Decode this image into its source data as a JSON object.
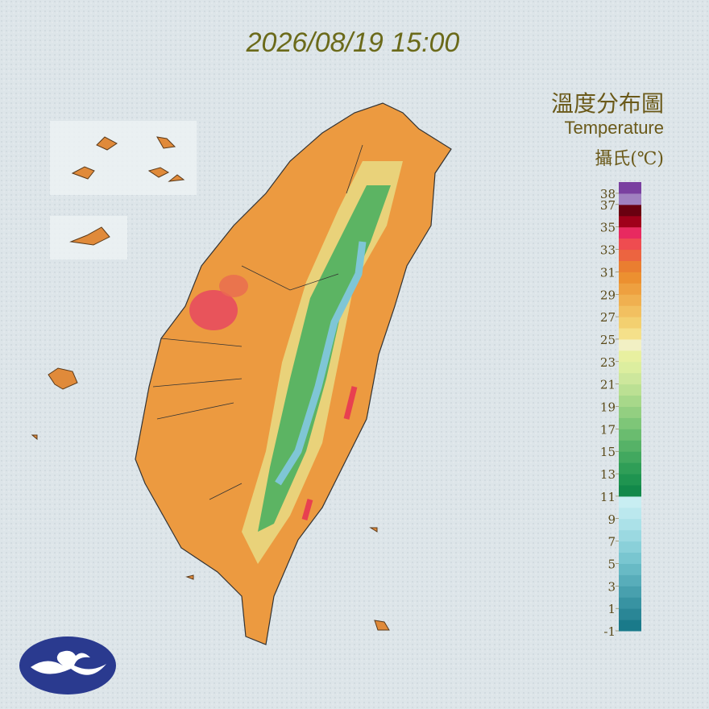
{
  "timestamp": "2026/08/19 15:00",
  "legend": {
    "title": "溫度分布圖",
    "subtitle": "Temperature",
    "unit": "攝氏(℃)",
    "range": [
      -1,
      39
    ],
    "ticks": [
      38,
      37,
      35,
      33,
      31,
      29,
      27,
      25,
      23,
      21,
      19,
      17,
      15,
      13,
      11,
      9,
      7,
      5,
      3,
      1,
      -1
    ],
    "colors": [
      "#1a7a8a",
      "#2a8696",
      "#3893a2",
      "#48a0ae",
      "#58adba",
      "#68bac5",
      "#79c6d0",
      "#8ad0d9",
      "#9bd9e1",
      "#abe1e8",
      "#bbe8ee",
      "#c8eef2",
      "#12894a",
      "#1f9450",
      "#2f9e57",
      "#42a85f",
      "#56b267",
      "#6abc6f",
      "#7ec678",
      "#93cf81",
      "#a7d88a",
      "#bbe093",
      "#cde79c",
      "#dcee9f",
      "#e8f0a0",
      "#f2f0c4",
      "#f5e08a",
      "#f3d070",
      "#f2c060",
      "#f0b050",
      "#eea040",
      "#ec9030",
      "#ea7e30",
      "#ec6440",
      "#ef4c50",
      "#e82a60",
      "#a0001a",
      "#6a0010",
      "#a080c0",
      "#7a40a0"
    ]
  }
}
